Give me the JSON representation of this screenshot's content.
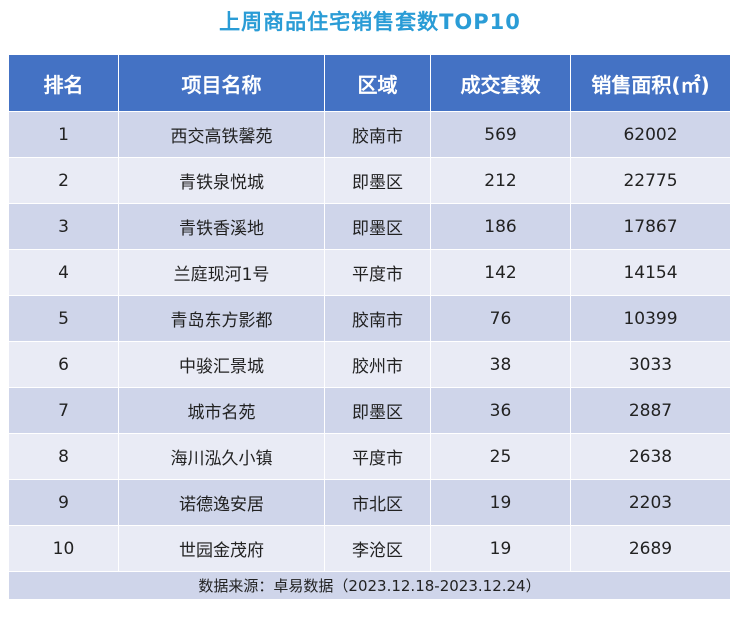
{
  "chart_data": {
    "type": "table",
    "title": "上周商品住宅销售套数TOP10",
    "columns": [
      "排名",
      "项目名称",
      "区域",
      "成交套数",
      "销售面积(㎡)"
    ],
    "rows": [
      [
        "1",
        "西交高铁馨苑",
        "胶南市",
        569,
        62002
      ],
      [
        "2",
        "青铁泉悦城",
        "即墨区",
        212,
        22775
      ],
      [
        "3",
        "青铁香溪地",
        "即墨区",
        186,
        17867
      ],
      [
        "4",
        "兰庭现河1号",
        "平度市",
        142,
        14154
      ],
      [
        "5",
        "青岛东方影都",
        "胶南市",
        76,
        10399
      ],
      [
        "6",
        "中骏汇景城",
        "胶州市",
        38,
        3033
      ],
      [
        "7",
        "城市名苑",
        "即墨区",
        36,
        2887
      ],
      [
        "8",
        "海川泓久小镇",
        "平度市",
        25,
        2638
      ],
      [
        "9",
        "诺德逸安居",
        "市北区",
        19,
        2203
      ],
      [
        "10",
        "世园金茂府",
        "李沧区",
        19,
        2689
      ]
    ],
    "source": "数据来源：卓易数据（2023.12.18-2023.12.24）"
  },
  "colors": {
    "title": "#2a9cd6",
    "header_bg": "#4472c4",
    "row_odd": "#cfd5ea",
    "row_even": "#e9ebf5"
  }
}
